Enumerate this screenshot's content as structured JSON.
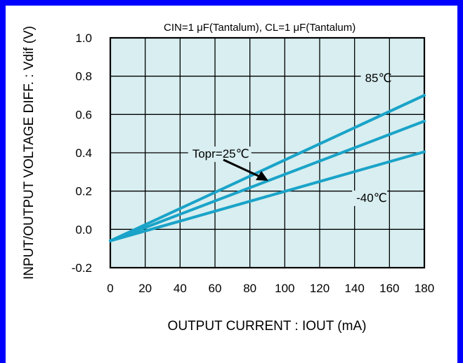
{
  "chart_data": {
    "type": "line",
    "title": "",
    "condition_note": "CIN=1 μF(Tantalum), CL=1 μF(Tantalum)",
    "xlabel": "OUTPUT CURRENT : IOUT (mA)",
    "ylabel": "INPUT/OUTPUT VOLTAGE DIFF. : Vdif (V)",
    "xlim": [
      0,
      180
    ],
    "ylim": [
      -0.2,
      1.0
    ],
    "x_ticks": [
      0,
      20,
      40,
      60,
      80,
      100,
      120,
      140,
      160,
      180
    ],
    "y_ticks": [
      -0.2,
      0.0,
      0.2,
      0.4,
      0.6,
      0.8,
      1.0
    ],
    "grid": true,
    "plot_background": "#d8eef0",
    "line_color": "#1aa3c8",
    "series": [
      {
        "name": "85℃",
        "x": [
          0,
          180
        ],
        "y": [
          -0.06,
          0.7
        ]
      },
      {
        "name": "Topr=25℃",
        "x": [
          0,
          180
        ],
        "y": [
          -0.06,
          0.565
        ]
      },
      {
        "name": "-40℃",
        "x": [
          0,
          180
        ],
        "y": [
          -0.06,
          0.405
        ]
      }
    ],
    "annotations": [
      {
        "text": "85℃",
        "x": 146,
        "y": 0.78
      },
      {
        "text": "Topr=25℃",
        "x": 47,
        "y": 0.385
      },
      {
        "text": "-40℃",
        "x": 141,
        "y": 0.155
      }
    ]
  }
}
